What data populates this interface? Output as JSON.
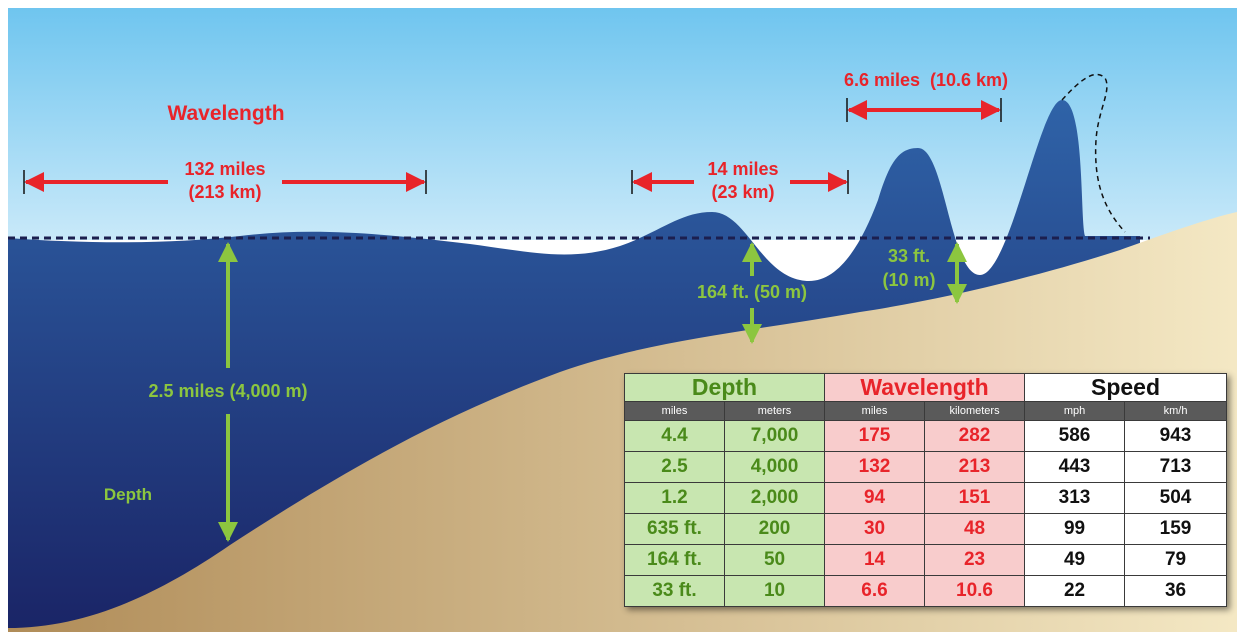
{
  "labels": {
    "wavelength_title": "Wavelength",
    "depth_title": "Depth",
    "wl1_line1": "132 miles",
    "wl1_line2": "(213 km)",
    "wl2_line1": "14 miles",
    "wl2_line2": "(23 km)",
    "wl3": "6.6 miles  (10.6 km)",
    "depth_deep": "2.5 miles (4,000 m)",
    "depth_mid": "164 ft. (50 m)",
    "depth_shallow_line1": "33 ft.",
    "depth_shallow_line2": "(10 m)"
  },
  "table": {
    "groups": [
      "Depth",
      "Wavelength",
      "Speed"
    ],
    "units": [
      "miles",
      "meters",
      "miles",
      "kilometers",
      "mph",
      "km/h"
    ],
    "rows": [
      [
        "4.4",
        "7,000",
        "175",
        "282",
        "586",
        "943"
      ],
      [
        "2.5",
        "4,000",
        "132",
        "213",
        "443",
        "713"
      ],
      [
        "1.2",
        "2,000",
        "94",
        "151",
        "313",
        "504"
      ],
      [
        "635 ft.",
        "200",
        "30",
        "48",
        "99",
        "159"
      ],
      [
        "164 ft.",
        "50",
        "14",
        "23",
        "49",
        "79"
      ],
      [
        "33 ft.",
        "10",
        "6.6",
        "10.6",
        "22",
        "36"
      ]
    ]
  },
  "colors": {
    "red": "#e8242a",
    "green": "#8cc63f",
    "ocean_dark": "#1b2a6b",
    "ocean_light": "#2f63a8",
    "sand": "#c4a574",
    "sky_top": "#6fc5ef",
    "sky_bottom": "#c6e8f9"
  }
}
